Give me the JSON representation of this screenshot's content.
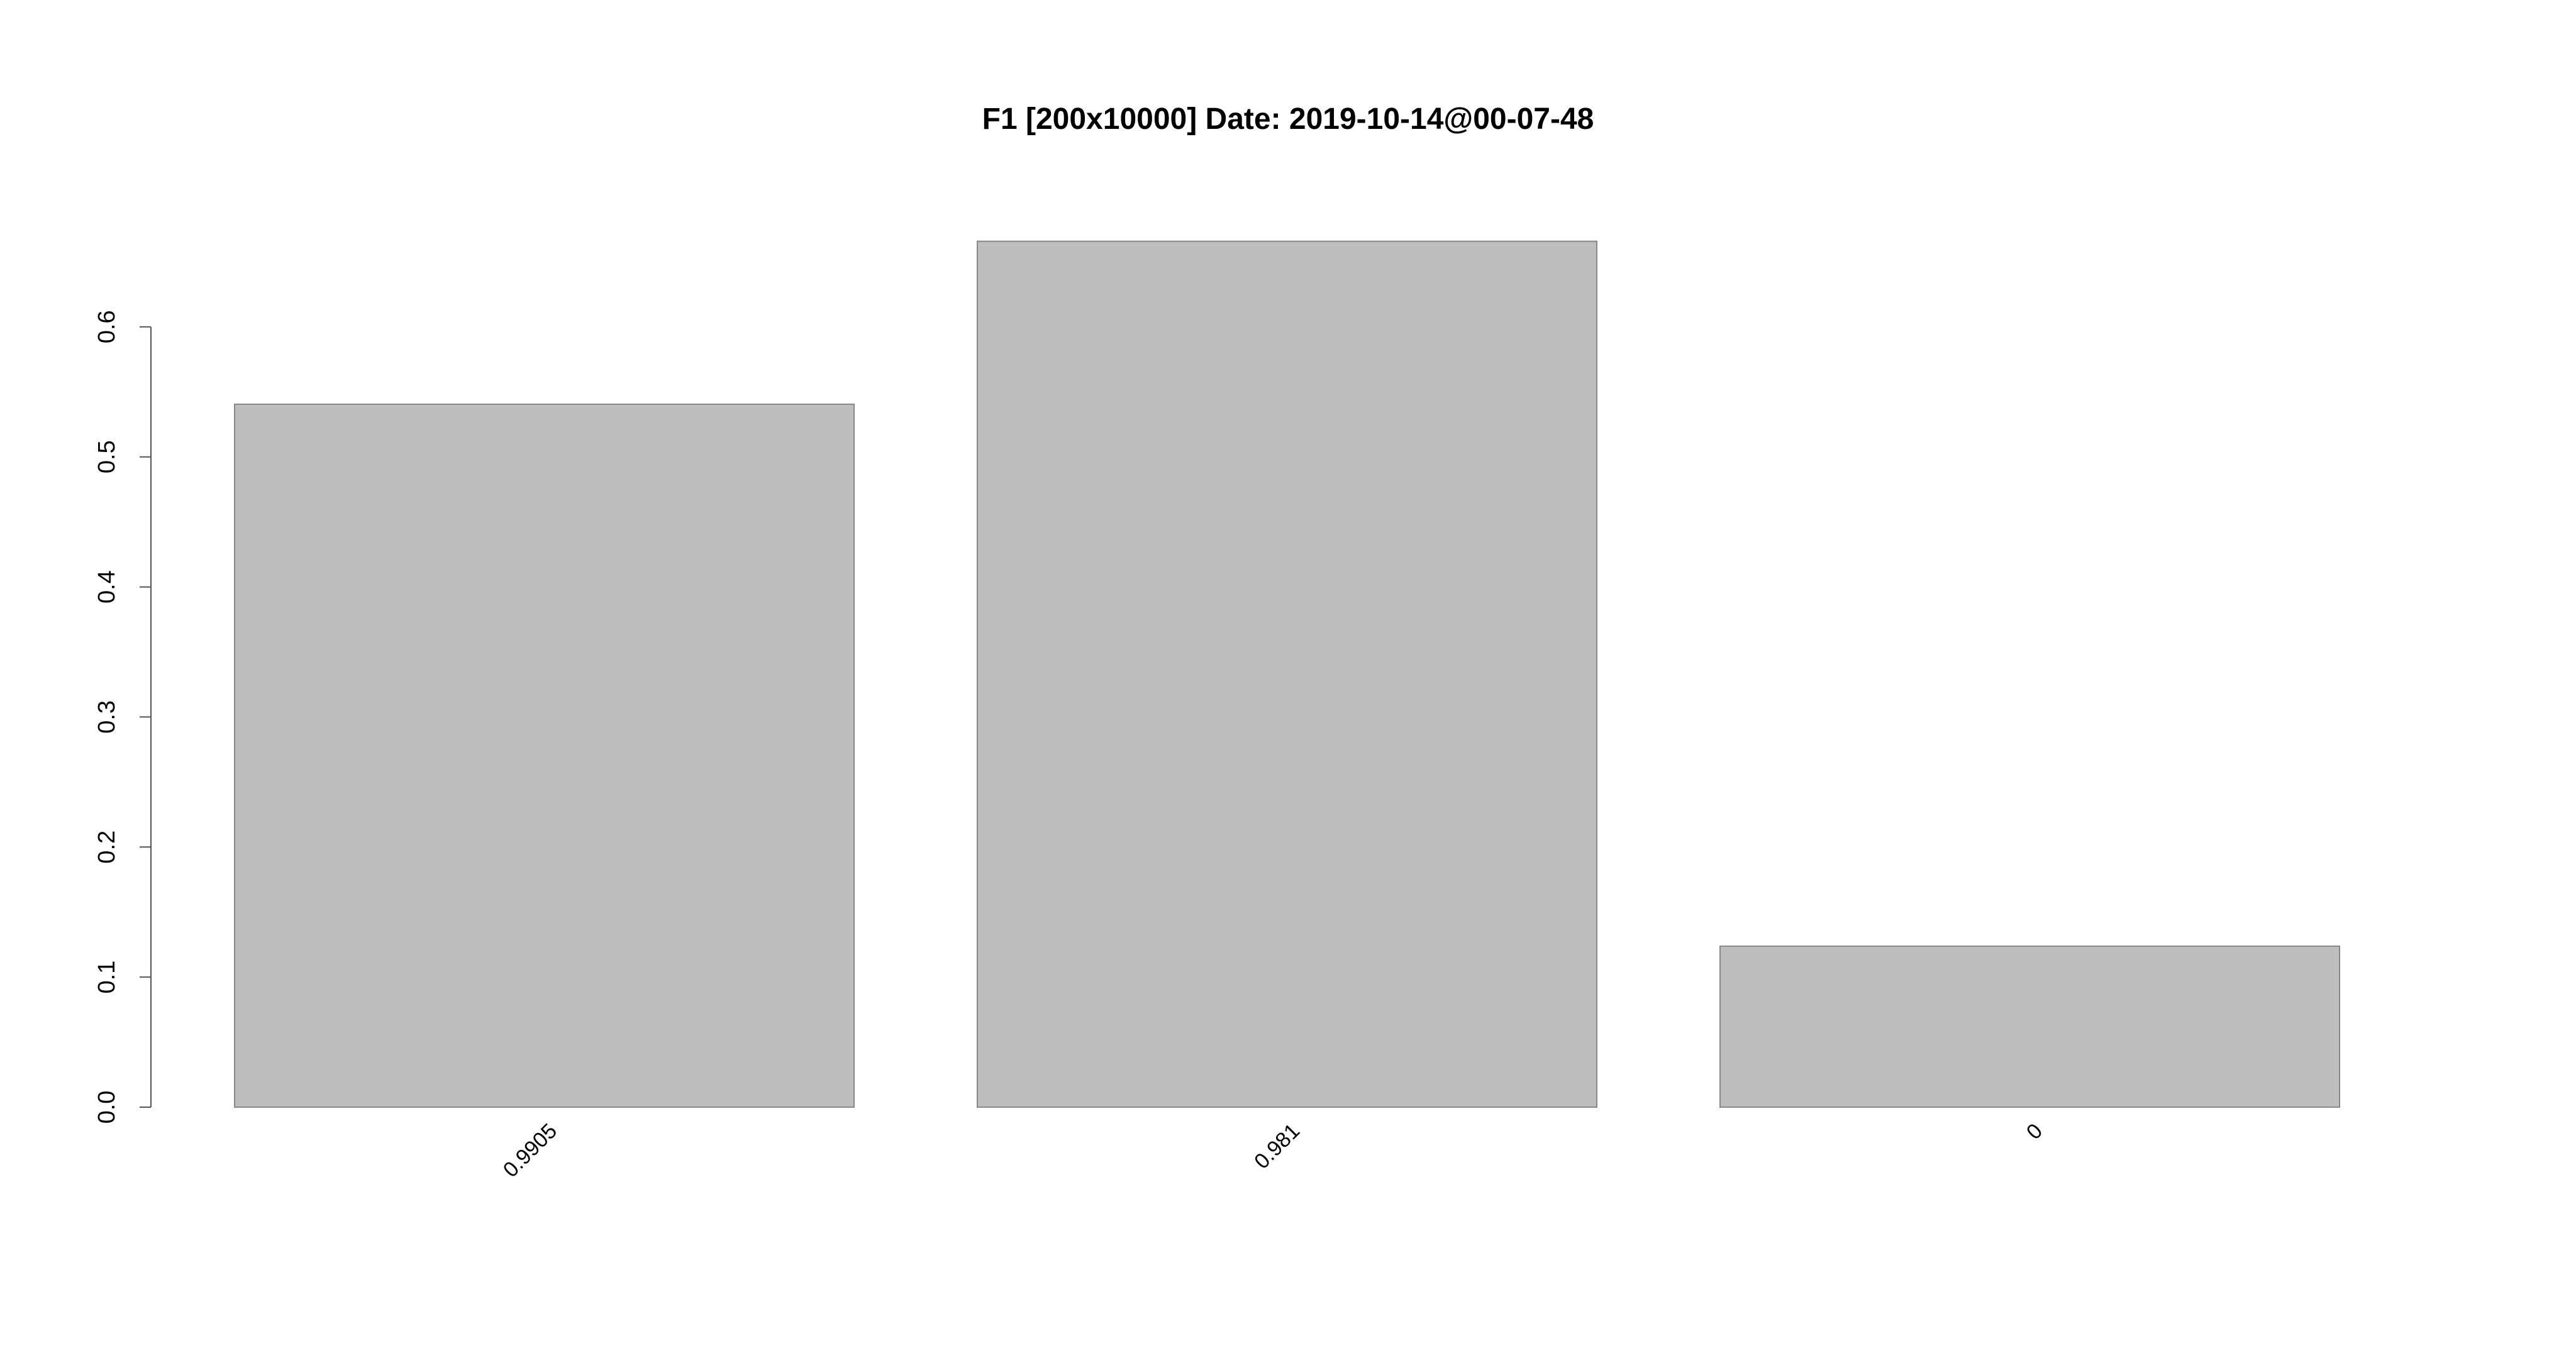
{
  "chart_data": {
    "type": "bar",
    "title": "F1 [200x10000] Date: 2019-10-14@00-07-48",
    "categories": [
      "0.9905",
      "0.981",
      "0"
    ],
    "values": [
      0.5405,
      0.6658,
      0.1238
    ],
    "color": "#bebebe",
    "ylim": [
      0,
      0.7
    ],
    "yticks": [
      {
        "value": 0,
        "label": "0.0"
      },
      0.1,
      0.2,
      0.3,
      0.4,
      0.5,
      0.6
    ]
  }
}
